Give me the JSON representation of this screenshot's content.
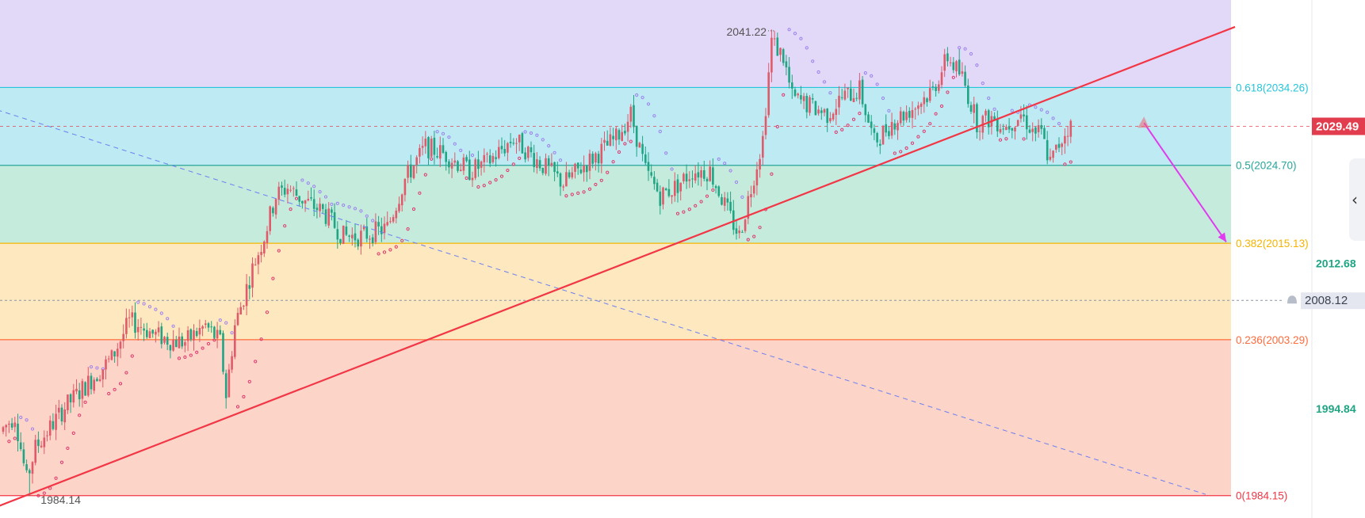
{
  "chart_data": {
    "type": "candlestick",
    "ylim": [
      1981.4,
      2045.0
    ],
    "fib_levels": [
      {
        "ratio": "0.618",
        "value": 2034.26,
        "label": "0.618(2034.26)",
        "color": "#26c6da",
        "fill": "#bdeaf3"
      },
      {
        "ratio": "0.5",
        "value": 2024.7,
        "label": "0.5(2024.70)",
        "color": "#26a69a",
        "fill": "#c5ebdd"
      },
      {
        "ratio": "0.382",
        "value": 2015.13,
        "label": "0.382(2015.13)",
        "color": "#f5b400",
        "fill": "#fde8bf"
      },
      {
        "ratio": "0.236",
        "value": 2003.29,
        "label": "0.236(2003.29)",
        "color": "#ff6b3d",
        "fill": "#fdd4c8"
      },
      {
        "ratio": "0",
        "value": 1984.15,
        "label": "0(1984.15)",
        "color": "#f23645",
        "fill": "#fdd4c8"
      }
    ],
    "top_zone_fill": "#e2d8f7",
    "price_axis_labels": [
      {
        "text": "2012.68",
        "value": 2012.68
      },
      {
        "text": "1994.84",
        "value": 1994.84
      }
    ],
    "current_price": {
      "text": "2029.49",
      "value": 2029.49,
      "color": "#e23d4e"
    },
    "alert_price": {
      "text": "2008.12",
      "value": 2008.12
    },
    "high_annotation": {
      "text": "2041.22",
      "value": 2041.22
    },
    "low_annotation": {
      "text": "1984.14",
      "value": 1984.14
    },
    "trendline": {
      "from": [
        -2,
        1982.8
      ],
      "to": [
        420,
        2041.7
      ],
      "color": "#f23645"
    },
    "dashed_line": {
      "from": [
        -2,
        2031.5
      ],
      "to": [
        410,
        1984.3
      ],
      "color": "#6c7ff0"
    },
    "projection_arrow": {
      "from": [
        389,
        2029.9
      ],
      "to": [
        417,
        2015.3
      ],
      "color": "#e13bf0"
    },
    "colors": {
      "up": "#e05a6a",
      "down": "#1fa583",
      "sar_above": "#9c80f0",
      "sar_below": "#e0356b"
    }
  },
  "ui": {
    "collapse_icon": "chevron-left-icon",
    "collapse_glyph": "‹"
  }
}
